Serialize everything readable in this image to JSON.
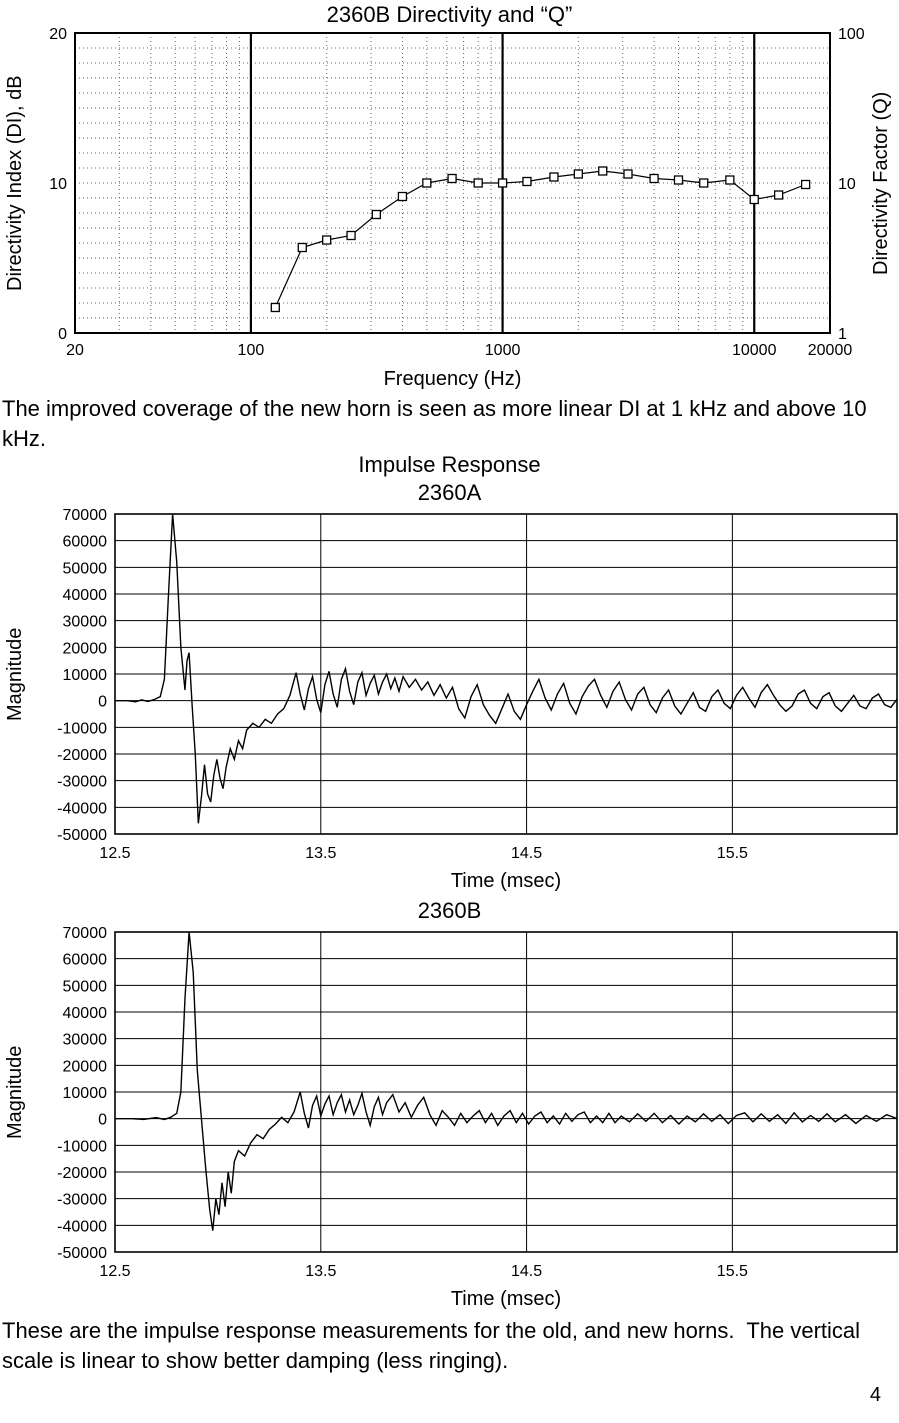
{
  "page": {
    "paragraph1": "The improved coverage of the new horn is seen as more linear DI at 1 kHz and above 10 kHz.",
    "paragraph2": "These are the impulse response measurements for the old, and new horns.  The vertical scale is linear to show better damping (less ringing).",
    "page_number": "4"
  },
  "chart_data": [
    {
      "type": "line",
      "kind": "directivity",
      "title": "2360B Directivity and “Q”",
      "xlabel": "Frequency (Hz)",
      "ylabel_left": "Directivity Index (DI), dB",
      "ylabel_right": "Directivity Factor (Q)",
      "x_scale": "log",
      "xlim": [
        20,
        20000
      ],
      "ylim": [
        0,
        20
      ],
      "y_minor_step": 1,
      "x_major_gridlines": [
        100,
        1000,
        10000
      ],
      "x_ticks": [
        {
          "v": 20,
          "label": "20"
        },
        {
          "v": 100,
          "label": "100"
        },
        {
          "v": 1000,
          "label": "1000"
        },
        {
          "v": 10000,
          "label": "10000"
        },
        {
          "v": 20000,
          "label": "20000"
        }
      ],
      "y_ticks_left": [
        {
          "v": 20,
          "label": "20"
        },
        {
          "v": 10,
          "label": "10"
        },
        {
          "v": 0,
          "label": "0"
        }
      ],
      "y_ticks_right": [
        {
          "v": 20,
          "label": "100"
        },
        {
          "v": 10,
          "label": "10"
        },
        {
          "v": 0,
          "label": "1"
        }
      ],
      "marker": "open-square",
      "line_color": "#000000",
      "x": [
        125,
        160,
        200,
        250,
        315,
        400,
        500,
        630,
        800,
        1000,
        1250,
        1600,
        2000,
        2500,
        3150,
        4000,
        5000,
        6300,
        8000,
        10000,
        12500,
        16000
      ],
      "y": [
        1.7,
        5.7,
        6.2,
        6.5,
        7.9,
        9.1,
        10.0,
        10.3,
        10.0,
        10.0,
        10.1,
        10.4,
        10.6,
        10.8,
        10.6,
        10.3,
        10.2,
        10.0,
        10.2,
        8.9,
        9.2,
        9.9
      ]
    },
    {
      "type": "line",
      "kind": "impulse",
      "title": "Impulse Response",
      "subtitle": "2360A",
      "xlabel": "Time (msec)",
      "ylabel": "Magnitude",
      "x_scale": "linear",
      "xlim": [
        12.5,
        16.3
      ],
      "ylim": [
        -50000,
        70000
      ],
      "y_tick_step": 10000,
      "x_gridlines": [
        13.5,
        14.5,
        15.5
      ],
      "x_ticks": [
        {
          "v": 12.5,
          "label": "12.5"
        },
        {
          "v": 13.5,
          "label": "13.5"
        },
        {
          "v": 14.5,
          "label": "14.5"
        },
        {
          "v": 15.5,
          "label": "15.5"
        }
      ],
      "line_color": "#000000",
      "x": [
        12.5,
        12.56,
        12.6,
        12.63,
        12.66,
        12.69,
        12.72,
        12.74,
        12.76,
        12.78,
        12.8,
        12.82,
        12.84,
        12.85,
        12.86,
        12.875,
        12.89,
        12.905,
        12.92,
        12.935,
        12.95,
        12.965,
        12.98,
        12.995,
        13.01,
        13.025,
        13.04,
        13.06,
        13.08,
        13.1,
        13.12,
        13.14,
        13.17,
        13.2,
        13.23,
        13.26,
        13.29,
        13.32,
        13.35,
        13.38,
        13.4,
        13.42,
        13.44,
        13.46,
        13.48,
        13.5,
        13.52,
        13.54,
        13.56,
        13.58,
        13.6,
        13.62,
        13.64,
        13.66,
        13.68,
        13.7,
        13.72,
        13.74,
        13.76,
        13.78,
        13.8,
        13.82,
        13.84,
        13.86,
        13.88,
        13.9,
        13.93,
        13.96,
        13.99,
        14.02,
        14.05,
        14.08,
        14.11,
        14.14,
        14.17,
        14.2,
        14.23,
        14.26,
        14.29,
        14.32,
        14.35,
        14.38,
        14.41,
        14.44,
        14.47,
        14.5,
        14.53,
        14.56,
        14.59,
        14.62,
        14.65,
        14.68,
        14.71,
        14.74,
        14.77,
        14.8,
        14.83,
        14.86,
        14.89,
        14.92,
        14.95,
        14.98,
        15.01,
        15.04,
        15.07,
        15.1,
        15.13,
        15.16,
        15.19,
        15.22,
        15.25,
        15.28,
        15.31,
        15.34,
        15.37,
        15.4,
        15.43,
        15.46,
        15.49,
        15.52,
        15.55,
        15.58,
        15.61,
        15.64,
        15.67,
        15.7,
        15.73,
        15.76,
        15.79,
        15.82,
        15.85,
        15.88,
        15.91,
        15.94,
        15.97,
        16.0,
        16.03,
        16.06,
        16.09,
        16.12,
        16.15,
        16.18,
        16.21,
        16.24,
        16.27,
        16.3
      ],
      "y": [
        0,
        0,
        -400,
        300,
        -300,
        400,
        1500,
        8000,
        40000,
        70000,
        52000,
        20000,
        4000,
        15000,
        18000,
        -2000,
        -20000,
        -46000,
        -36000,
        -24000,
        -35000,
        -38000,
        -28000,
        -22000,
        -29000,
        -33000,
        -25000,
        -18000,
        -22000,
        -15000,
        -18000,
        -11000,
        -8500,
        -10000,
        -7000,
        -8500,
        -5000,
        -3000,
        2000,
        10500,
        2500,
        -3500,
        4500,
        9000,
        500,
        -4500,
        6000,
        11000,
        2500,
        -2500,
        8000,
        12000,
        3500,
        -1500,
        7000,
        10500,
        2000,
        6500,
        9500,
        2500,
        7000,
        10000,
        4500,
        8500,
        3500,
        9000,
        5000,
        8000,
        4000,
        7000,
        2000,
        6000,
        1000,
        5000,
        -3000,
        -6500,
        1500,
        6000,
        -1500,
        -5500,
        -8500,
        -3000,
        2500,
        -4000,
        -7000,
        -1500,
        3500,
        8000,
        1000,
        -3500,
        2500,
        6500,
        -1000,
        -5000,
        1500,
        5500,
        8000,
        2000,
        -2500,
        3500,
        7000,
        500,
        -3500,
        2500,
        5000,
        -1500,
        -4500,
        1000,
        4000,
        -2000,
        -5000,
        -1000,
        3000,
        -2500,
        -4000,
        1500,
        4000,
        -1000,
        -3000,
        2000,
        5000,
        1000,
        -2500,
        3000,
        6000,
        2000,
        -1500,
        -4000,
        -2000,
        2500,
        4000,
        -1000,
        -3000,
        1500,
        3000,
        -2000,
        -4000,
        -1000,
        2000,
        -2000,
        -3000,
        1000,
        2500,
        -1500,
        -2500,
        500
      ]
    },
    {
      "type": "line",
      "kind": "impulse",
      "title": "2360B",
      "xlabel": "Time (msec)",
      "ylabel": "Magnitude",
      "x_scale": "linear",
      "xlim": [
        12.5,
        16.3
      ],
      "ylim": [
        -50000,
        70000
      ],
      "y_tick_step": 10000,
      "x_gridlines": [
        13.5,
        14.5,
        15.5
      ],
      "x_ticks": [
        {
          "v": 12.5,
          "label": "12.5"
        },
        {
          "v": 13.5,
          "label": "13.5"
        },
        {
          "v": 14.5,
          "label": "14.5"
        },
        {
          "v": 15.5,
          "label": "15.5"
        }
      ],
      "line_color": "#000000",
      "x": [
        12.5,
        12.58,
        12.64,
        12.7,
        12.74,
        12.77,
        12.8,
        12.82,
        12.84,
        12.86,
        12.88,
        12.9,
        12.92,
        12.94,
        12.96,
        12.975,
        12.99,
        13.005,
        13.02,
        13.035,
        13.05,
        13.065,
        13.08,
        13.1,
        13.13,
        13.16,
        13.19,
        13.22,
        13.25,
        13.28,
        13.31,
        13.34,
        13.37,
        13.4,
        13.42,
        13.44,
        13.46,
        13.48,
        13.5,
        13.52,
        13.54,
        13.56,
        13.58,
        13.6,
        13.62,
        13.64,
        13.66,
        13.68,
        13.7,
        13.72,
        13.74,
        13.76,
        13.78,
        13.8,
        13.82,
        13.85,
        13.88,
        13.91,
        13.94,
        13.97,
        14.0,
        14.03,
        14.06,
        14.09,
        14.12,
        14.15,
        14.18,
        14.21,
        14.24,
        14.27,
        14.3,
        14.33,
        14.36,
        14.39,
        14.42,
        14.45,
        14.48,
        14.51,
        14.54,
        14.57,
        14.6,
        14.63,
        14.66,
        14.69,
        14.72,
        14.75,
        14.78,
        14.81,
        14.84,
        14.87,
        14.9,
        14.93,
        14.96,
        15.0,
        15.04,
        15.08,
        15.12,
        15.16,
        15.2,
        15.24,
        15.28,
        15.32,
        15.36,
        15.4,
        15.44,
        15.48,
        15.52,
        15.56,
        15.6,
        15.64,
        15.68,
        15.72,
        15.76,
        15.8,
        15.84,
        15.88,
        15.92,
        15.96,
        16.0,
        16.05,
        16.1,
        16.15,
        16.2,
        16.25,
        16.3
      ],
      "y": [
        0,
        0,
        -300,
        400,
        -300,
        500,
        2000,
        10000,
        45000,
        70000,
        55000,
        18000,
        0,
        -18000,
        -34000,
        -42000,
        -30000,
        -36000,
        -24000,
        -33000,
        -20000,
        -28000,
        -16000,
        -12000,
        -14000,
        -9000,
        -6000,
        -7500,
        -4000,
        -2000,
        500,
        -1500,
        2500,
        10000,
        2000,
        -3500,
        5000,
        8500,
        1000,
        5500,
        8500,
        1500,
        6000,
        9000,
        2500,
        7000,
        1500,
        5000,
        9500,
        2500,
        -2500,
        4500,
        8000,
        1500,
        6000,
        9000,
        2500,
        6000,
        500,
        5000,
        8000,
        1500,
        -2500,
        3000,
        500,
        -2500,
        2000,
        -1500,
        1000,
        3000,
        -1500,
        2000,
        -2500,
        1000,
        3000,
        -1500,
        2000,
        -2000,
        1000,
        2500,
        -1500,
        1000,
        -2000,
        2000,
        -1000,
        1500,
        2500,
        -1500,
        1000,
        -1500,
        2000,
        -1500,
        1000,
        -1200,
        1800,
        -1000,
        2000,
        -1500,
        1200,
        -2000,
        1000,
        -1200,
        1800,
        -1000,
        1500,
        -1800,
        1200,
        2200,
        -1200,
        1800,
        -1000,
        1500,
        -1800,
        2200,
        -1200,
        1200,
        -1000,
        1800,
        -1200,
        1500,
        -1800,
        1200,
        -1000,
        1500,
        0
      ]
    }
  ]
}
